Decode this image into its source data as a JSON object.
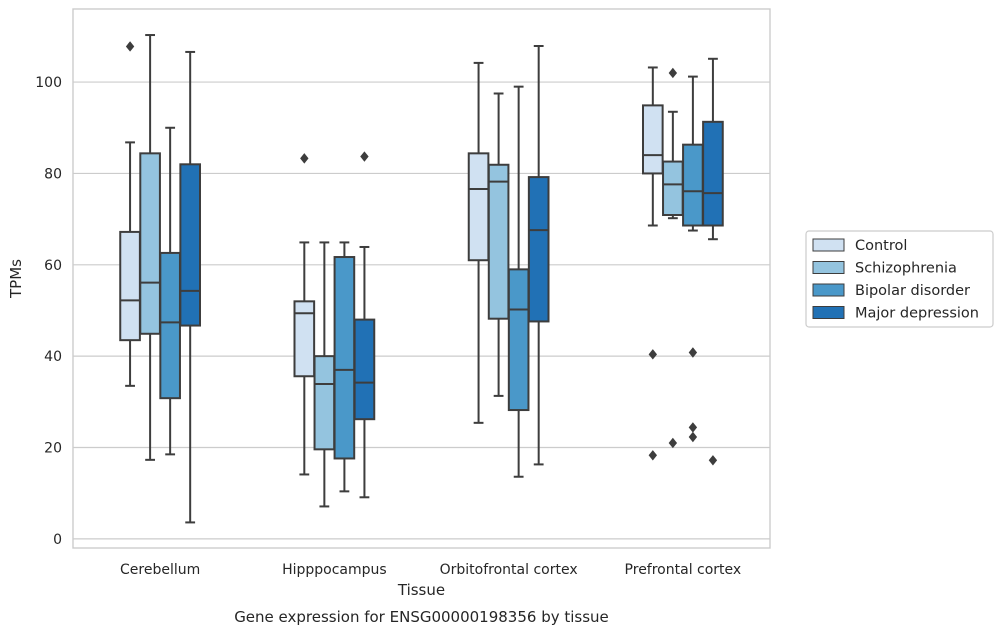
{
  "chart_data": {
    "type": "box",
    "caption": "Gene expression for ENSG00000198356 by tissue",
    "xlabel": "Tissue",
    "ylabel": "TPMs",
    "ylim": [
      -2,
      116
    ],
    "yticks": [
      0,
      20,
      40,
      60,
      80,
      100
    ],
    "grid": "horizontal",
    "legend_position": "right",
    "categories": [
      "Cerebellum",
      "Hipppocampus",
      "Orbitofrontal cortex",
      "Prefrontal cortex"
    ],
    "series": [
      {
        "name": "Control",
        "color": "#d0e1f2",
        "boxes": [
          {
            "min": 33.5,
            "q1": 43.5,
            "median": 52.2,
            "q3": 67.2,
            "max": 86.8,
            "outliers": [
              107.8
            ]
          },
          {
            "min": 14.1,
            "q1": 35.6,
            "median": 49.4,
            "q3": 52.0,
            "max": 64.9,
            "outliers": [
              83.3
            ]
          },
          {
            "min": 25.4,
            "q1": 61.0,
            "median": 76.6,
            "q3": 84.4,
            "max": 104.2,
            "outliers": []
          },
          {
            "min": 68.6,
            "q1": 80.0,
            "median": 84.0,
            "q3": 94.9,
            "max": 103.2,
            "outliers": [
              40.4,
              18.3
            ]
          }
        ]
      },
      {
        "name": "Schizophrenia",
        "color": "#94c4df",
        "boxes": [
          {
            "min": 17.3,
            "q1": 44.9,
            "median": 56.1,
            "q3": 84.4,
            "max": 110.3,
            "outliers": []
          },
          {
            "min": 7.1,
            "q1": 19.6,
            "median": 33.9,
            "q3": 40.0,
            "max": 64.9,
            "outliers": []
          },
          {
            "min": 31.3,
            "q1": 48.2,
            "median": 78.2,
            "q3": 81.9,
            "max": 97.5,
            "outliers": []
          },
          {
            "min": 70.2,
            "q1": 70.9,
            "median": 77.6,
            "q3": 82.6,
            "max": 93.5,
            "outliers": [
              102.0,
              21.0
            ]
          }
        ]
      },
      {
        "name": "Bipolar disorder",
        "color": "#4a98c9",
        "boxes": [
          {
            "min": 18.5,
            "q1": 30.8,
            "median": 47.4,
            "q3": 62.6,
            "max": 90.0,
            "outliers": []
          },
          {
            "min": 10.4,
            "q1": 17.6,
            "median": 37.0,
            "q3": 61.7,
            "max": 64.9,
            "outliers": []
          },
          {
            "min": 13.6,
            "q1": 28.2,
            "median": 50.2,
            "q3": 59.0,
            "max": 99.0,
            "outliers": []
          },
          {
            "min": 67.5,
            "q1": 68.6,
            "median": 76.1,
            "q3": 86.3,
            "max": 101.2,
            "outliers": [
              40.8,
              24.4,
              22.3
            ]
          }
        ]
      },
      {
        "name": "Major depression",
        "color": "#2171b5",
        "boxes": [
          {
            "min": 3.6,
            "q1": 46.7,
            "median": 54.3,
            "q3": 82.0,
            "max": 106.6,
            "outliers": []
          },
          {
            "min": 9.1,
            "q1": 26.2,
            "median": 34.2,
            "q3": 48.0,
            "max": 63.9,
            "outliers": [
              83.7
            ]
          },
          {
            "min": 16.3,
            "q1": 47.6,
            "median": 67.6,
            "q3": 79.2,
            "max": 107.9,
            "outliers": []
          },
          {
            "min": 65.6,
            "q1": 68.6,
            "median": 75.7,
            "q3": 91.3,
            "max": 105.1,
            "outliers": [
              17.2
            ]
          }
        ]
      }
    ]
  }
}
